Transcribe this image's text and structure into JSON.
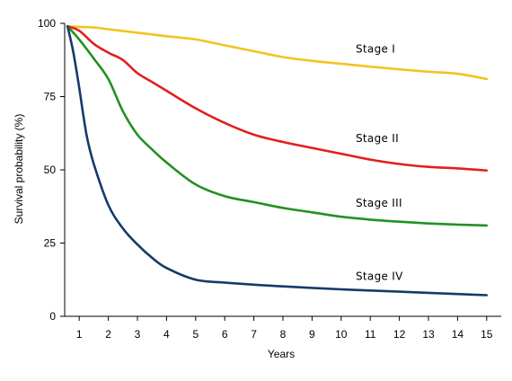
{
  "chart_data": {
    "type": "line",
    "title": "",
    "xlabel": "Years",
    "ylabel": "Survival probability (%)",
    "xlim": [
      0.5,
      15.5
    ],
    "ylim": [
      0,
      100
    ],
    "xticks": [
      1,
      2,
      3,
      4,
      5,
      6,
      7,
      8,
      9,
      10,
      11,
      12,
      13,
      14,
      15
    ],
    "yticks": [
      0,
      25,
      50,
      75,
      100
    ],
    "grid": false,
    "legend": "none",
    "series": [
      {
        "name": "Stage I",
        "color": "#f2c41e",
        "x": [
          0.6,
          1,
          1.5,
          2,
          3,
          4,
          5,
          6,
          7,
          8,
          9,
          10,
          11,
          12,
          13,
          14,
          15
        ],
        "y": [
          99,
          98.8,
          98.6,
          98,
          96.8,
          95.6,
          94.5,
          92.5,
          90.5,
          88.5,
          87.2,
          86.2,
          85.2,
          84.3,
          83.5,
          82.8,
          81
        ]
      },
      {
        "name": "Stage II",
        "color": "#e0201e",
        "x": [
          0.6,
          1,
          1.5,
          2,
          2.5,
          3,
          3.5,
          4,
          5,
          6,
          7,
          8,
          9,
          10,
          11,
          12,
          13,
          14,
          15
        ],
        "y": [
          99,
          97.5,
          93,
          90,
          87.5,
          83,
          80,
          77,
          71,
          66,
          62,
          59.5,
          57.5,
          55.5,
          53.5,
          52,
          51,
          50.5,
          49.8
        ]
      },
      {
        "name": "Stage III",
        "color": "#229122",
        "x": [
          0.6,
          1,
          1.5,
          2,
          2.5,
          3,
          3.5,
          4,
          5,
          6,
          7,
          8,
          9,
          10,
          11,
          12,
          13,
          14,
          15
        ],
        "y": [
          99,
          94.5,
          88,
          81,
          70,
          62,
          57,
          52.5,
          45,
          41,
          39,
          37,
          35.5,
          34,
          33,
          32.3,
          31.7,
          31.3,
          31
        ]
      },
      {
        "name": "Stage IV",
        "color": "#163a6a",
        "x": [
          0.6,
          0.8,
          1,
          1.25,
          1.5,
          2,
          2.5,
          3,
          3.5,
          4,
          5,
          6,
          7,
          8,
          9,
          10,
          11,
          12,
          13,
          14,
          15
        ],
        "y": [
          99,
          90,
          78,
          62,
          52,
          38,
          30,
          24.5,
          20,
          16.5,
          12.5,
          11.5,
          10.8,
          10.2,
          9.7,
          9.2,
          8.8,
          8.4,
          8,
          7.6,
          7.2
        ]
      }
    ],
    "annotations": [
      {
        "text": "Stage I",
        "x": 10.5,
        "y": 90
      },
      {
        "text": "Stage II",
        "x": 10.5,
        "y": 59.5
      },
      {
        "text": "Stage III",
        "x": 10.5,
        "y": 37.5
      },
      {
        "text": "Stage IV",
        "x": 10.5,
        "y": 12.5
      }
    ]
  }
}
